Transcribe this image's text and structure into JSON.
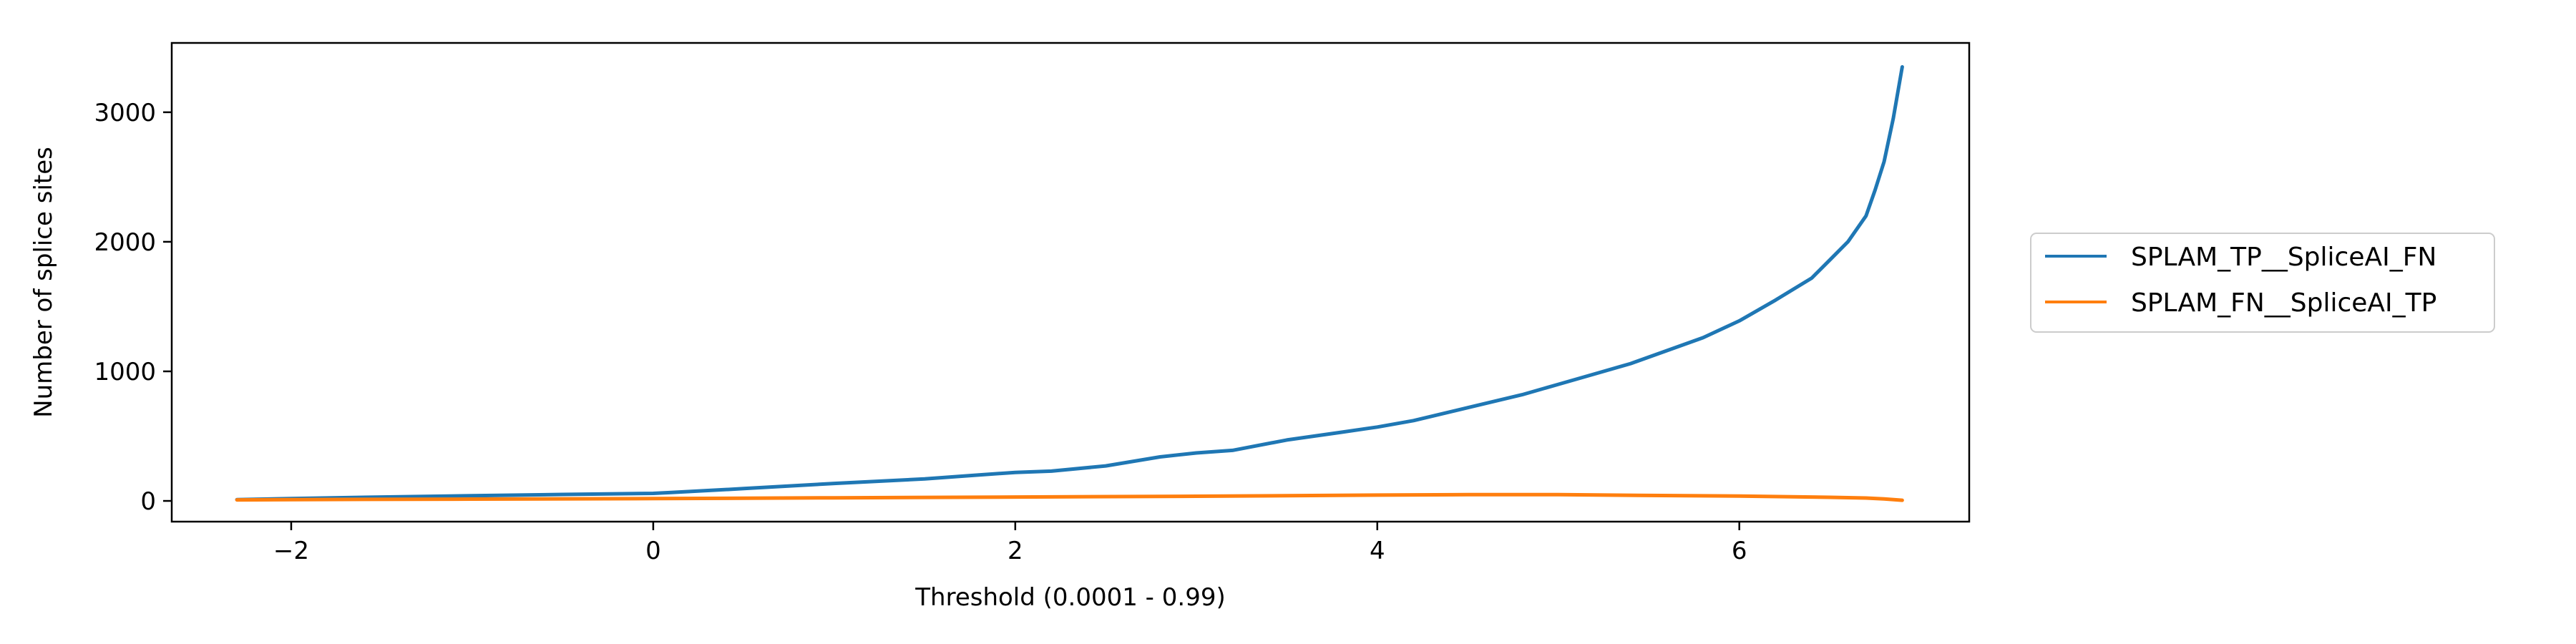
{
  "chart_data": {
    "type": "line",
    "title": "",
    "xlabel": "Threshold (0.0001 - 0.99)",
    "ylabel": "Number of splice sites",
    "xlim": [
      -2.66,
      7.27
    ],
    "ylim": [
      -160,
      3535
    ],
    "xticks": [
      -2,
      0,
      2,
      4,
      6
    ],
    "xtick_labels": [
      "−2",
      "0",
      "2",
      "4",
      "6"
    ],
    "yticks": [
      0,
      1000,
      2000,
      3000
    ],
    "ytick_labels": [
      "0",
      "1000",
      "2000",
      "3000"
    ],
    "grid": false,
    "legend_position": "right, outside plot",
    "series": [
      {
        "name": "SPLAM_TP__SpliceAI_FN",
        "color": "#1f77b4",
        "x": [
          -2.3,
          -2.0,
          -1.5,
          -1.0,
          -0.5,
          0.0,
          0.1,
          0.5,
          1.0,
          1.5,
          1.8,
          2.0,
          2.2,
          2.5,
          2.8,
          3.0,
          3.2,
          3.5,
          3.8,
          4.0,
          4.2,
          4.5,
          4.8,
          5.0,
          5.2,
          5.4,
          5.6,
          5.8,
          6.0,
          6.2,
          6.4,
          6.5,
          6.6,
          6.7,
          6.75,
          6.8,
          6.85,
          6.9
        ],
        "y": [
          10,
          18,
          30,
          40,
          50,
          58,
          65,
          95,
          135,
          170,
          200,
          220,
          230,
          270,
          340,
          370,
          390,
          470,
          530,
          570,
          620,
          720,
          820,
          900,
          980,
          1060,
          1160,
          1260,
          1390,
          1550,
          1720,
          1860,
          2000,
          2200,
          2400,
          2620,
          2950,
          3350
        ]
      },
      {
        "name": "SPLAM_FN__SpliceAI_TP",
        "color": "#ff7f0e",
        "x": [
          -2.3,
          -2.0,
          -1.0,
          0.0,
          1.0,
          2.0,
          3.0,
          4.0,
          4.5,
          5.0,
          5.5,
          6.0,
          6.5,
          6.7,
          6.8,
          6.9
        ],
        "y": [
          8,
          10,
          14,
          18,
          24,
          30,
          36,
          45,
          48,
          48,
          42,
          38,
          28,
          22,
          15,
          5
        ]
      }
    ]
  }
}
